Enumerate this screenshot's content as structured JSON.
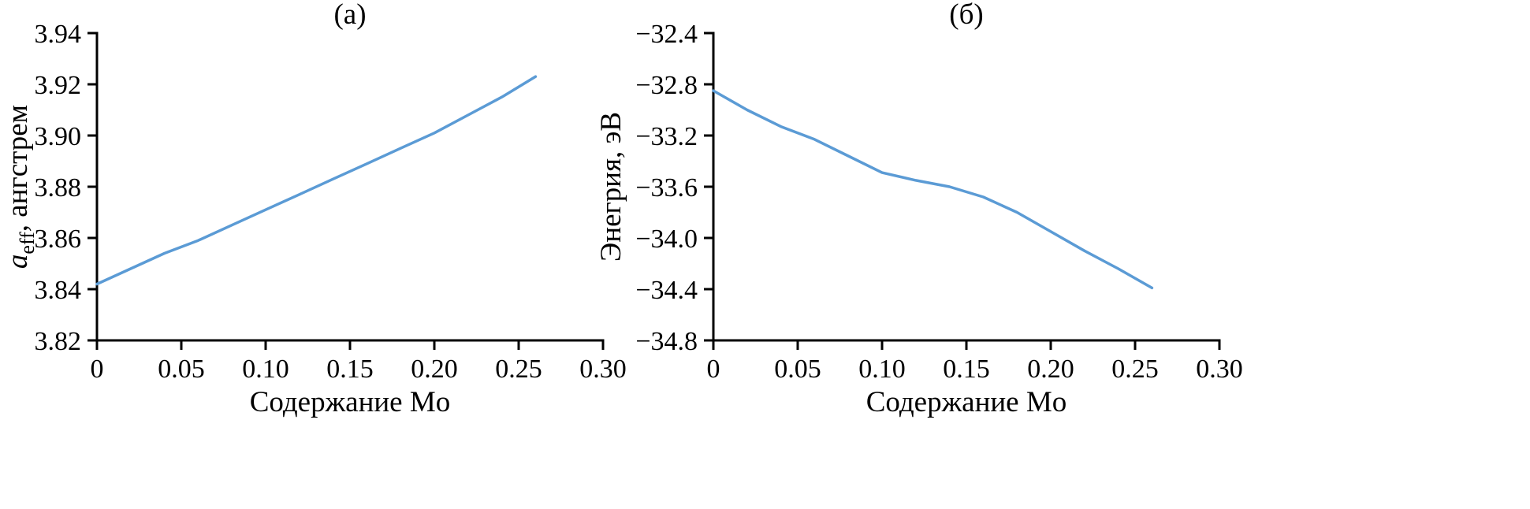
{
  "figure": {
    "background": "#ffffff",
    "axis_color": "#000000",
    "line_color": "#5b9bd5"
  },
  "chart_data": [
    {
      "type": "line",
      "panel_label": "(а)",
      "title": "",
      "xlabel": "Содержание Mo",
      "ylabel": {
        "italic": "a",
        "sub": "eff",
        "rest": ", ангстрем"
      },
      "xlim": [
        0,
        0.3
      ],
      "ylim": [
        3.82,
        3.94
      ],
      "grid": false,
      "legend": false,
      "xticks": [
        0,
        0.05,
        0.1,
        0.15,
        0.2,
        0.25,
        0.3
      ],
      "xtick_labels": [
        "0",
        "0.05",
        "0.10",
        "0.15",
        "0.20",
        "0.25",
        "0.30"
      ],
      "yticks": [
        3.82,
        3.84,
        3.86,
        3.88,
        3.9,
        3.92,
        3.94
      ],
      "ytick_labels": [
        "3.82",
        "3.84",
        "3.86",
        "3.88",
        "3.90",
        "3.92",
        "3.94"
      ],
      "x": [
        0,
        0.02,
        0.04,
        0.06,
        0.08,
        0.1,
        0.12,
        0.14,
        0.16,
        0.18,
        0.2,
        0.22,
        0.24,
        0.26
      ],
      "y": [
        3.842,
        3.848,
        3.854,
        3.859,
        3.865,
        3.871,
        3.877,
        3.883,
        3.889,
        3.895,
        3.901,
        3.908,
        3.915,
        3.923
      ]
    },
    {
      "type": "line",
      "panel_label": "(б)",
      "title": "",
      "xlabel": "Содержание Mo",
      "ylabel": {
        "rest": "Энегрия, эВ"
      },
      "xlim": [
        0,
        0.3
      ],
      "ylim": [
        -34.8,
        -32.4
      ],
      "grid": false,
      "legend": false,
      "xticks": [
        0,
        0.05,
        0.1,
        0.15,
        0.2,
        0.25,
        0.3
      ],
      "xtick_labels": [
        "0",
        "0.05",
        "0.10",
        "0.15",
        "0.20",
        "0.25",
        "0.30"
      ],
      "yticks": [
        -34.8,
        -34.4,
        -34.0,
        -33.6,
        -33.2,
        -32.8,
        -32.4
      ],
      "ytick_labels": [
        "−34.8",
        "−34.4",
        "−34.0",
        "−33.6",
        "−33.2",
        "−32.8",
        "−32.4"
      ],
      "x": [
        0,
        0.02,
        0.04,
        0.06,
        0.08,
        0.1,
        0.12,
        0.14,
        0.16,
        0.18,
        0.2,
        0.22,
        0.24,
        0.26
      ],
      "y": [
        -32.85,
        -33.0,
        -33.13,
        -33.23,
        -33.36,
        -33.49,
        -33.55,
        -33.6,
        -33.68,
        -33.8,
        -33.95,
        -34.1,
        -34.24,
        -34.39
      ]
    }
  ]
}
